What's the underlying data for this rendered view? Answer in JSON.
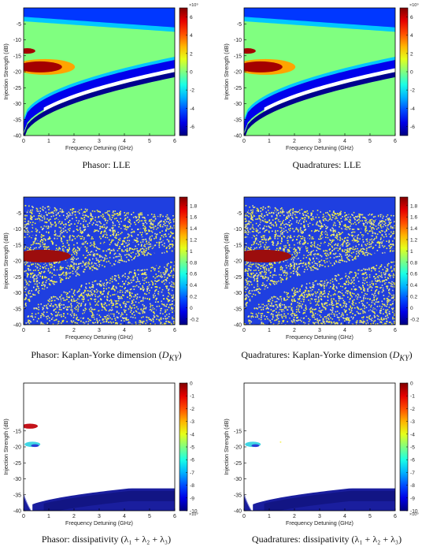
{
  "chart_data": [
    {
      "type": "heatmap",
      "panel": "phasor-lle",
      "caption": "Phasor: LLE",
      "xlabel": "Frequency Detuning (GHz)",
      "ylabel": "Injection Strength (dB)",
      "xlim": [
        0,
        6
      ],
      "ylim": [
        -40,
        0
      ],
      "xticks": [
        0,
        1,
        2,
        3,
        4,
        5,
        6
      ],
      "yticks": [
        -5,
        -10,
        -15,
        -20,
        -25,
        -30,
        -35,
        -40
      ],
      "colorbar": {
        "ticks": [
          6,
          4,
          2,
          0,
          -2,
          -4,
          -6
        ],
        "min": -7,
        "max": 7,
        "exponent": "×10⁹"
      },
      "background_value": 0,
      "regions": [
        {
          "name": "upper",
          "value": -7
        },
        {
          "name": "chaos-lobe",
          "value": 6
        },
        {
          "name": "band-edge",
          "value": -5
        }
      ]
    },
    {
      "type": "heatmap",
      "panel": "quad-lle",
      "caption": "Quadratures: LLE",
      "xlabel": "Frequency Detuning (GHz)",
      "ylabel": "Injection Strength (dB)",
      "xlim": [
        0,
        6
      ],
      "ylim": [
        -40,
        0
      ],
      "xticks": [
        0,
        1,
        2,
        3,
        4,
        5,
        6
      ],
      "yticks": [
        -5,
        -10,
        -15,
        -20,
        -25,
        -30,
        -35,
        -40
      ],
      "colorbar": {
        "ticks": [
          6,
          4,
          2,
          0,
          -2,
          -4,
          -6
        ],
        "min": -7,
        "max": 7,
        "exponent": "×10⁹"
      },
      "background_value": 0,
      "regions": [
        {
          "name": "upper",
          "value": -7
        },
        {
          "name": "chaos-lobe",
          "value": 6
        },
        {
          "name": "band-edge",
          "value": -5
        }
      ]
    },
    {
      "type": "heatmap",
      "panel": "phasor-dky",
      "caption_prefix": "Phasor: Kaplan-Yorke dimension (",
      "caption_math": "D",
      "caption_sub": "KY",
      "caption_suffix": ")",
      "xlabel": "Frequency Detuning (GHz)",
      "ylabel": "Injection Strength (dB)",
      "xlim": [
        0,
        6
      ],
      "ylim": [
        -40,
        0
      ],
      "xticks": [
        0,
        1,
        2,
        3,
        4,
        5,
        6
      ],
      "yticks": [
        -5,
        -10,
        -15,
        -20,
        -25,
        -30,
        -35,
        -40
      ],
      "colorbar": {
        "ticks": [
          1.8,
          1.6,
          1.4,
          1.2,
          1,
          0.8,
          0.6,
          0.4,
          0.2,
          0,
          -0.2
        ],
        "min": -0.3,
        "max": 1.95,
        "exponent": ""
      },
      "background_value": 0,
      "regions": [
        {
          "name": "noise",
          "values": [
            0,
            1
          ]
        },
        {
          "name": "chaos-lobe",
          "value": 1.9
        }
      ]
    },
    {
      "type": "heatmap",
      "panel": "quad-dky",
      "caption_prefix": "Quadratures: Kaplan-Yorke dimension (",
      "caption_math": "D",
      "caption_sub": "KY",
      "caption_suffix": ")",
      "xlabel": "Frequency Detuning (GHz)",
      "ylabel": "Injection Strength (dB)",
      "xlim": [
        0,
        6
      ],
      "ylim": [
        -40,
        0
      ],
      "xticks": [
        0,
        1,
        2,
        3,
        4,
        5,
        6
      ],
      "yticks": [
        -5,
        -10,
        -15,
        -20,
        -25,
        -30,
        -35,
        -40
      ],
      "colorbar": {
        "ticks": [
          1.8,
          1.6,
          1.4,
          1.2,
          1,
          0.8,
          0.6,
          0.4,
          0.2,
          0,
          -0.2
        ],
        "min": -0.3,
        "max": 1.95,
        "exponent": ""
      },
      "background_value": 0,
      "regions": [
        {
          "name": "noise",
          "values": [
            0,
            1
          ]
        },
        {
          "name": "chaos-lobe",
          "value": 1.9
        }
      ]
    },
    {
      "type": "heatmap",
      "panel": "phasor-diss",
      "caption": "Phasor: dissipativity (λ₁ + λ₂ + λ₃)",
      "xlabel": "Frequency Detuning (GHz)",
      "ylabel": "Injection Strength (dB)",
      "xlim": [
        0,
        6
      ],
      "ylim": [
        -40,
        0
      ],
      "xticks": [
        0,
        1,
        2,
        3,
        4,
        5,
        6
      ],
      "yticks": [
        -15,
        -20,
        -25,
        -30,
        -35,
        -40
      ],
      "colorbar": {
        "ticks": [
          0,
          -1,
          -2,
          -3,
          -4,
          -5,
          -6,
          -7,
          -8,
          -9,
          -10
        ],
        "min": -10,
        "max": 0,
        "exponent": "×10⁹"
      },
      "background_value": null,
      "regions": [
        {
          "name": "chaos-lobe",
          "value": -0.5
        },
        {
          "name": "cyan-patch",
          "value": -5
        },
        {
          "name": "bottom-band",
          "value": -9.5
        }
      ]
    },
    {
      "type": "heatmap",
      "panel": "quad-diss",
      "caption": "Quadratures: dissipativity (λ₁ + λ₂ + λ₃)",
      "xlabel": "Frequency Detuning (GHz)",
      "ylabel": "Injection Strength (dB)",
      "xlim": [
        0,
        6
      ],
      "ylim": [
        -40,
        0
      ],
      "xticks": [
        0,
        1,
        2,
        3,
        4,
        5,
        6
      ],
      "yticks": [
        -15,
        -20,
        -25,
        -30,
        -35,
        -40
      ],
      "colorbar": {
        "ticks": [
          0,
          -1,
          -2,
          -3,
          -4,
          -5,
          -6,
          -7,
          -8,
          -9,
          -10
        ],
        "min": -10,
        "max": 0,
        "exponent": "×10⁹"
      },
      "background_value": null,
      "regions": [
        {
          "name": "cyan-patch",
          "value": -5
        },
        {
          "name": "bottom-band",
          "value": -9.5
        }
      ]
    }
  ]
}
